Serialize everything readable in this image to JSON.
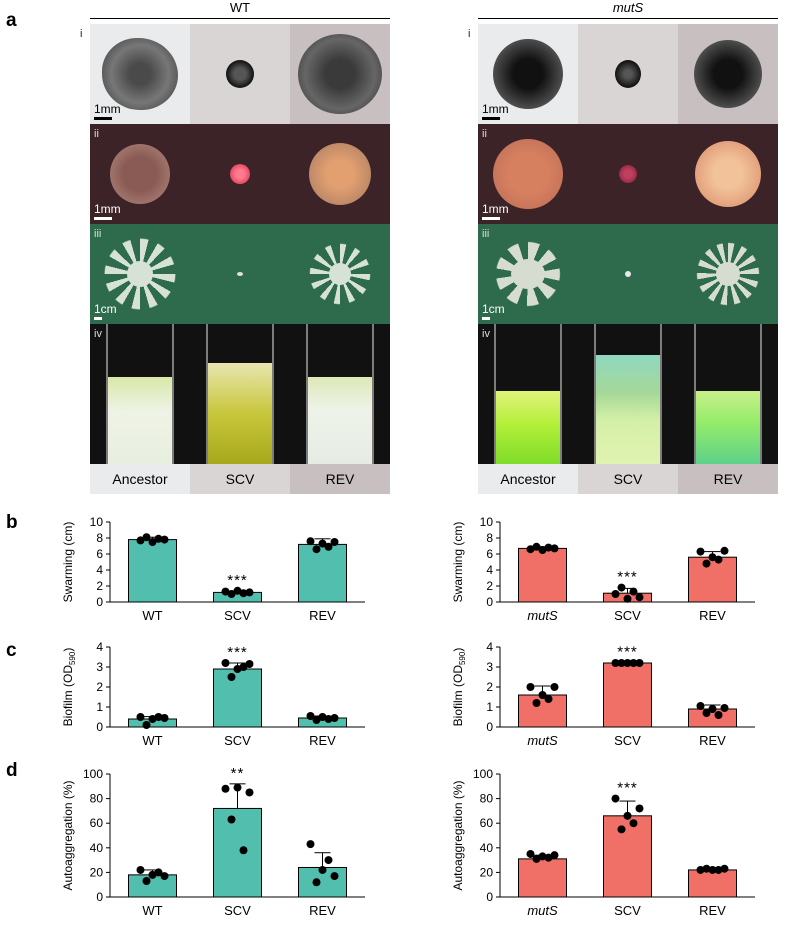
{
  "panel_letters": {
    "a": "a",
    "b": "b",
    "c": "c",
    "d": "d"
  },
  "images": {
    "groups": [
      {
        "title": "WT",
        "italic": false
      },
      {
        "title": "mutS",
        "italic": true
      }
    ],
    "row_labels": [
      "i",
      "ii",
      "iii",
      "iv"
    ],
    "column_labels": [
      "Ancestor",
      "SCV",
      "REV"
    ],
    "scale_bars": [
      "1mm",
      "1mm",
      "1cm"
    ]
  },
  "colors": {
    "wt": "#52bfae",
    "muts": "#f07068",
    "swarm_bg": "#2e6b4c",
    "congo_bg": "#3b2327"
  },
  "chart_data": [
    {
      "id": "b-wt",
      "type": "bar",
      "categories": [
        "WT",
        "SCV",
        "REV"
      ],
      "italic_first": false,
      "values": [
        7.8,
        1.2,
        7.2
      ],
      "errors": [
        0.3,
        0.15,
        0.7
      ],
      "points": [
        [
          7.7,
          8.1,
          7.5,
          7.9,
          7.8
        ],
        [
          1.3,
          1.0,
          1.4,
          1.1,
          1.2
        ],
        [
          7.6,
          6.6,
          7.3,
          6.9,
          7.5
        ]
      ],
      "ylabel": "Swarming (cm)",
      "ylim": [
        0,
        10
      ],
      "yticks": [
        0,
        2,
        4,
        6,
        8,
        10
      ],
      "tick_labels": [
        "0",
        "2",
        "4",
        "6",
        "8",
        "10"
      ],
      "annotations": [
        {
          "index": 1,
          "text": "***"
        }
      ],
      "color": "#52bfae"
    },
    {
      "id": "b-mutS",
      "type": "bar",
      "categories": [
        "mutS",
        "SCV",
        "REV"
      ],
      "italic_first": true,
      "values": [
        6.7,
        1.1,
        5.6
      ],
      "errors": [
        0.2,
        0.6,
        0.7
      ],
      "points": [
        [
          6.6,
          6.9,
          6.5,
          6.8,
          6.7
        ],
        [
          1.0,
          1.8,
          0.4,
          1.3,
          0.6
        ],
        [
          6.3,
          4.8,
          5.6,
          5.3,
          6.4
        ]
      ],
      "ylabel": "Swarming (cm)",
      "ylim": [
        0,
        10
      ],
      "yticks": [
        0,
        2,
        4,
        6,
        8,
        10
      ],
      "tick_labels": [
        "0",
        "2",
        "4",
        "6",
        "8",
        "10"
      ],
      "annotations": [
        {
          "index": 1,
          "text": "***"
        }
      ],
      "color": "#f07068"
    },
    {
      "id": "c-wt",
      "type": "bar",
      "categories": [
        "WT",
        "SCV",
        "REV"
      ],
      "italic_first": false,
      "values": [
        0.4,
        2.9,
        0.45
      ],
      "errors": [
        0.12,
        0.3,
        0.1
      ],
      "points": [
        [
          0.5,
          0.1,
          0.4,
          0.5,
          0.45
        ],
        [
          3.2,
          2.5,
          2.9,
          3.0,
          3.15
        ],
        [
          0.55,
          0.35,
          0.5,
          0.4,
          0.45
        ]
      ],
      "ylabel": "Biofilm (OD590)",
      "ylabel_main": "Biofilm (OD",
      "ylabel_sub": "590",
      "ylabel_end": ")",
      "ylim": [
        0,
        4
      ],
      "yticks": [
        0,
        1,
        2,
        3,
        4
      ],
      "tick_labels": [
        "0",
        "1",
        "2",
        "3",
        "4"
      ],
      "annotations": [
        {
          "index": 1,
          "text": "***"
        }
      ],
      "color": "#52bfae"
    },
    {
      "id": "c-mutS",
      "type": "bar",
      "categories": [
        "mutS",
        "SCV",
        "REV"
      ],
      "italic_first": true,
      "values": [
        1.6,
        3.2,
        0.9
      ],
      "errors": [
        0.45,
        0.03,
        0.2
      ],
      "points": [
        [
          2.0,
          1.2,
          1.6,
          1.4,
          2.0
        ],
        [
          3.2,
          3.2,
          3.2,
          3.2,
          3.2
        ],
        [
          1.05,
          0.7,
          0.9,
          0.6,
          0.95
        ]
      ],
      "ylabel": "Biofilm (OD590)",
      "ylabel_main": "Biofilm (OD",
      "ylabel_sub": "590",
      "ylabel_end": ")",
      "ylim": [
        0,
        4
      ],
      "yticks": [
        0,
        1,
        2,
        3,
        4
      ],
      "tick_labels": [
        "0",
        "1",
        "2",
        "3",
        "4"
      ],
      "annotations": [
        {
          "index": 1,
          "text": "***"
        }
      ],
      "color": "#f07068"
    },
    {
      "id": "d-wt",
      "type": "bar",
      "categories": [
        "WT",
        "SCV",
        "REV"
      ],
      "italic_first": false,
      "values": [
        18,
        72,
        24
      ],
      "errors": [
        4,
        20,
        12
      ],
      "points": [
        [
          22,
          13,
          18,
          20,
          17
        ],
        [
          88,
          63,
          89,
          38,
          85
        ],
        [
          43,
          12,
          22,
          30,
          17
        ]
      ],
      "ylabel": "Autoaggregation (%)",
      "ylim": [
        0,
        100
      ],
      "yticks": [
        0,
        20,
        40,
        60,
        80,
        100
      ],
      "tick_labels": [
        "0",
        "20",
        "40",
        "60",
        "80",
        "100"
      ],
      "annotations": [
        {
          "index": 1,
          "text": "**"
        }
      ],
      "color": "#52bfae"
    },
    {
      "id": "d-mutS",
      "type": "bar",
      "categories": [
        "mutS",
        "SCV",
        "REV"
      ],
      "italic_first": true,
      "values": [
        31,
        66,
        22
      ],
      "errors": [
        3,
        12,
        1
      ],
      "points": [
        [
          35,
          31,
          33,
          32,
          34
        ],
        [
          80,
          55,
          66,
          60,
          72
        ],
        [
          22,
          23,
          22,
          22,
          23
        ]
      ],
      "ylabel": "Autoaggregation (%)",
      "ylim": [
        0,
        100
      ],
      "yticks": [
        0,
        20,
        40,
        60,
        80,
        100
      ],
      "tick_labels": [
        "0",
        "20",
        "40",
        "60",
        "80",
        "100"
      ],
      "annotations": [
        {
          "index": 1,
          "text": "***"
        }
      ],
      "color": "#f07068"
    }
  ]
}
